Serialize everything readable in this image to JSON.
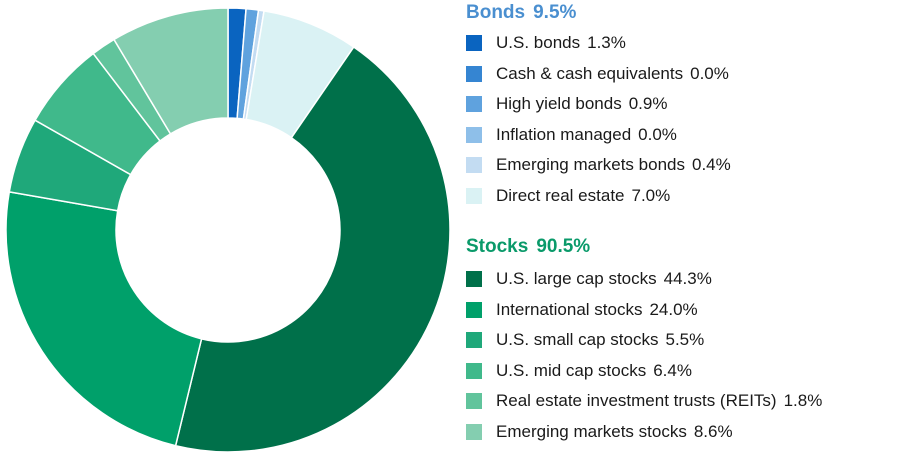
{
  "chart_data": {
    "type": "pie",
    "style": "donut",
    "groups": [
      {
        "name": "Bonds",
        "value": "9.5%",
        "color": "#4a8fd0",
        "items": [
          {
            "label": "U.S. bonds",
            "value": 1.3,
            "display": "1.3%",
            "color": "#0a64c0"
          },
          {
            "label": "Cash & cash equivalents",
            "value": 0.0,
            "display": "0.0%",
            "color": "#3585d2"
          },
          {
            "label": "High yield bonds",
            "value": 0.9,
            "display": "0.9%",
            "color": "#5fa2de"
          },
          {
            "label": "Inflation managed",
            "value": 0.0,
            "display": "0.0%",
            "color": "#8ebfe9"
          },
          {
            "label": "Emerging markets bonds",
            "value": 0.4,
            "display": "0.4%",
            "color": "#c3dcf2"
          },
          {
            "label": "Direct real estate",
            "value": 7.0,
            "display": "7.0%",
            "color": "#daf2f4"
          }
        ]
      },
      {
        "name": "Stocks",
        "value": "90.5%",
        "color": "#0a9a6a",
        "items": [
          {
            "label": "U.S. large cap stocks",
            "value": 44.3,
            "display": "44.3%",
            "color": "#00704a"
          },
          {
            "label": "International stocks",
            "value": 24.0,
            "display": "24.0%",
            "color": "#00a06a"
          },
          {
            "label": "U.S. small cap stocks",
            "value": 5.5,
            "display": "5.5%",
            "color": "#1fa87a"
          },
          {
            "label": "U.S. mid cap stocks",
            "value": 6.4,
            "display": "6.4%",
            "color": "#40b98b"
          },
          {
            "label": "Real estate investment trusts (REITs)",
            "value": 1.8,
            "display": "1.8%",
            "color": "#61c49c"
          },
          {
            "label": "Emerging markets stocks",
            "value": 8.6,
            "display": "8.6%",
            "color": "#84ceb0"
          }
        ]
      }
    ]
  }
}
